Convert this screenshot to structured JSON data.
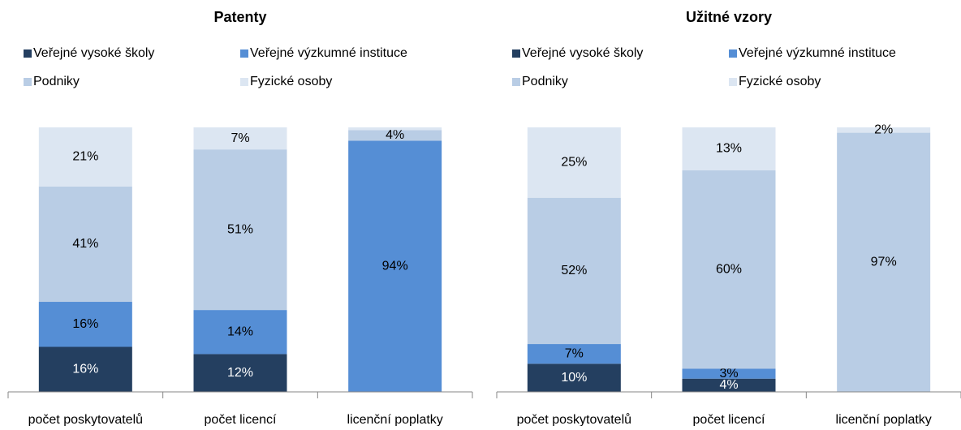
{
  "chart_data": [
    {
      "type": "bar",
      "stacking": "percent",
      "title": "Patenty",
      "categories": [
        "počet poskytovatelů",
        "počet licencí",
        "licenční poplatky"
      ],
      "series": [
        {
          "name": "Veřejné vysoké školy",
          "color": "#243f60",
          "values": [
            16,
            12,
            0
          ],
          "value_labels": [
            "16%",
            "12%",
            null
          ]
        },
        {
          "name": "Veřejné výzkumné instituce",
          "color": "#558ed5",
          "values": [
            16,
            14,
            94
          ],
          "value_labels": [
            "16%",
            "14%",
            "94%"
          ]
        },
        {
          "name": "Podniky",
          "color": "#b9cde5",
          "values": [
            41,
            51,
            4
          ],
          "value_labels": [
            "41%",
            "51%",
            "4%"
          ]
        },
        {
          "name": "Fyzické osoby",
          "color": "#dce6f2",
          "values": [
            21,
            7,
            1
          ],
          "value_labels": [
            "21%",
            "7%",
            null
          ]
        }
      ]
    },
    {
      "type": "bar",
      "stacking": "percent",
      "title": "Užitné vzory",
      "categories": [
        "počet poskytovatelů",
        "počet licencí",
        "licenční poplatky"
      ],
      "series": [
        {
          "name": "Veřejné vysoké školy",
          "color": "#243f60",
          "values": [
            10,
            4,
            0
          ],
          "value_labels": [
            "10%",
            "4%",
            null
          ]
        },
        {
          "name": "Veřejné výzkumné instituce",
          "color": "#558ed5",
          "values": [
            7,
            3,
            0
          ],
          "value_labels": [
            "7%",
            "3%",
            null
          ]
        },
        {
          "name": "Podniky",
          "color": "#b9cde5",
          "values": [
            52,
            60,
            97
          ],
          "value_labels": [
            "52%",
            "60%",
            "97%"
          ]
        },
        {
          "name": "Fyzické osoby",
          "color": "#dce6f2",
          "values": [
            25,
            13,
            2
          ],
          "value_labels": [
            "25%",
            "13%",
            "2%"
          ]
        }
      ]
    }
  ]
}
